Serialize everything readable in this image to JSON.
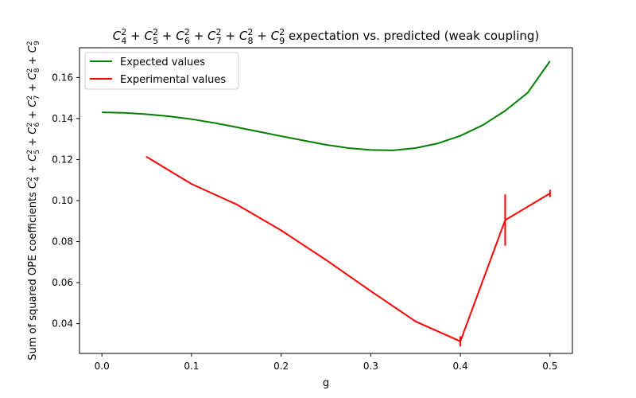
{
  "chart_data": {
    "type": "line",
    "title": {
      "terms": [
        "4",
        "5",
        "6",
        "7",
        "8",
        "9"
      ],
      "suffix": " expectation vs. predicted (weak coupling)"
    },
    "xlabel": "g",
    "ylabel": {
      "prefix": "Sum of squared OPE coefficients ",
      "terms": [
        "4",
        "5",
        "6",
        "7",
        "8",
        "9"
      ]
    },
    "xlim": [
      -0.025,
      0.525
    ],
    "ylim": [
      0.0255,
      0.1745
    ],
    "xticks": [
      "0.0",
      "0.1",
      "0.2",
      "0.3",
      "0.4",
      "0.5"
    ],
    "yticks": [
      "0.04",
      "0.06",
      "0.08",
      "0.10",
      "0.12",
      "0.14",
      "0.16"
    ],
    "legend_position": "upper-left",
    "series": [
      {
        "name": "Expected values",
        "color": "#008000",
        "x": [
          0.0,
          0.025,
          0.05,
          0.075,
          0.1,
          0.125,
          0.15,
          0.175,
          0.2,
          0.225,
          0.25,
          0.275,
          0.3,
          0.325,
          0.35,
          0.375,
          0.4,
          0.425,
          0.45,
          0.475,
          0.5
        ],
        "y": [
          0.143,
          0.1428,
          0.1421,
          0.1411,
          0.1397,
          0.1379,
          0.1358,
          0.1336,
          0.1314,
          0.1293,
          0.1272,
          0.1256,
          0.1247,
          0.1245,
          0.1256,
          0.1279,
          0.1316,
          0.1368,
          0.1438,
          0.1525,
          0.168
        ]
      },
      {
        "name": "Experimental values",
        "color": "#ff0000",
        "x": [
          0.05,
          0.1,
          0.15,
          0.2,
          0.25,
          0.3,
          0.35,
          0.4,
          0.45,
          0.5
        ],
        "y": [
          0.1213,
          0.1081,
          0.0982,
          0.0855,
          0.0711,
          0.0559,
          0.0411,
          0.0314,
          0.0905,
          0.1035
        ],
        "yerr": [
          0.0003,
          0.0003,
          0.0003,
          0.0003,
          0.0003,
          0.0003,
          0.0004,
          0.0025,
          0.0125,
          0.0018
        ]
      }
    ]
  }
}
